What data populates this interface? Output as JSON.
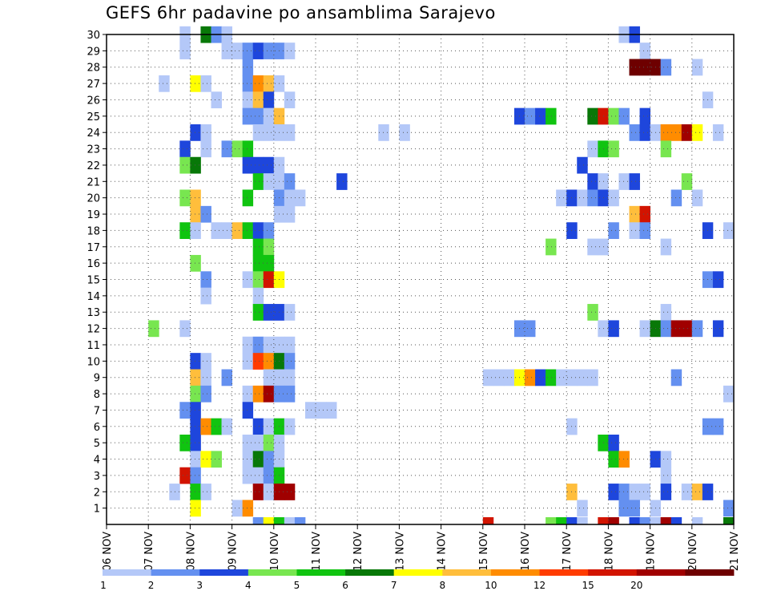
{
  "chart_data": {
    "type": "heatmap",
    "title": "GEFS 6hr padavine po ansamblima Sarajevo",
    "x_ticks": [
      "06 NOV",
      "07 NOV",
      "08 NOV",
      "09 NOV",
      "10 NOV",
      "11 NOV",
      "12 NOV",
      "13 NOV",
      "14 NOV",
      "15 NOV",
      "16 NOV",
      "17 NOV",
      "18 NOV",
      "19 NOV",
      "20 NOV",
      "21 NOV"
    ],
    "y_ticks": [
      1,
      2,
      3,
      4,
      5,
      6,
      7,
      8,
      9,
      10,
      11,
      12,
      13,
      14,
      15,
      16,
      17,
      18,
      19,
      20,
      21,
      22,
      23,
      24,
      25,
      26,
      27,
      28,
      29,
      30
    ],
    "xlim": [
      0,
      60
    ],
    "ylim": [
      0,
      30
    ],
    "time_step_hours": 6,
    "colorbar": {
      "labels": [
        "1",
        "2",
        "3",
        "4",
        "5",
        "6",
        "7",
        "8",
        "10",
        "12",
        "15",
        "20"
      ],
      "colors": [
        "#b4c8f8",
        "#6490f0",
        "#1e46dc",
        "#78e650",
        "#10c410",
        "#087808",
        "#ffff00",
        "#ffbe3c",
        "#ff8c00",
        "#ff3c00",
        "#d21400",
        "#a00000",
        "#6e0000"
      ]
    },
    "cells": [
      {
        "c": 10,
        "r": 30,
        "v": 6
      },
      {
        "c": 8,
        "r": 30,
        "v": 1
      },
      {
        "c": 11,
        "r": 30,
        "v": 2
      },
      {
        "c": 12,
        "r": 30,
        "v": 1
      },
      {
        "c": 50,
        "r": 30,
        "v": 1
      },
      {
        "c": 51,
        "r": 30,
        "v": 3
      },
      {
        "c": 8,
        "r": 29,
        "v": 1
      },
      {
        "c": 12,
        "r": 29,
        "v": 1
      },
      {
        "c": 13,
        "r": 29,
        "v": 1
      },
      {
        "c": 14,
        "r": 29,
        "v": 2
      },
      {
        "c": 15,
        "r": 29,
        "v": 3
      },
      {
        "c": 16,
        "r": 29,
        "v": 2
      },
      {
        "c": 17,
        "r": 29,
        "v": 2
      },
      {
        "c": 18,
        "r": 29,
        "v": 1
      },
      {
        "c": 52,
        "r": 29,
        "v": 1
      },
      {
        "c": 14,
        "r": 28,
        "v": 2
      },
      {
        "c": 51,
        "r": 28,
        "v": 13
      },
      {
        "c": 52,
        "r": 28,
        "v": 13
      },
      {
        "c": 53,
        "r": 28,
        "v": 13
      },
      {
        "c": 54,
        "r": 28,
        "v": 2
      },
      {
        "c": 57,
        "r": 28,
        "v": 1
      },
      {
        "c": 6,
        "r": 27,
        "v": 1
      },
      {
        "c": 9,
        "r": 27,
        "v": 7
      },
      {
        "c": 10,
        "r": 27,
        "v": 1
      },
      {
        "c": 14,
        "r": 27,
        "v": 2
      },
      {
        "c": 15,
        "r": 27,
        "v": 9
      },
      {
        "c": 16,
        "r": 27,
        "v": 8
      },
      {
        "c": 17,
        "r": 27,
        "v": 1
      },
      {
        "c": 11,
        "r": 26,
        "v": 1
      },
      {
        "c": 14,
        "r": 26,
        "v": 1
      },
      {
        "c": 15,
        "r": 26,
        "v": 8
      },
      {
        "c": 16,
        "r": 26,
        "v": 3
      },
      {
        "c": 18,
        "r": 26,
        "v": 1
      },
      {
        "c": 58,
        "r": 26,
        "v": 1
      },
      {
        "c": 14,
        "r": 25,
        "v": 2
      },
      {
        "c": 15,
        "r": 25,
        "v": 2
      },
      {
        "c": 16,
        "r": 25,
        "v": 1
      },
      {
        "c": 17,
        "r": 25,
        "v": 8
      },
      {
        "c": 40,
        "r": 25,
        "v": 3
      },
      {
        "c": 41,
        "r": 25,
        "v": 2
      },
      {
        "c": 42,
        "r": 25,
        "v": 3
      },
      {
        "c": 43,
        "r": 25,
        "v": 5
      },
      {
        "c": 47,
        "r": 25,
        "v": 6
      },
      {
        "c": 48,
        "r": 25,
        "v": 11
      },
      {
        "c": 49,
        "r": 25,
        "v": 4
      },
      {
        "c": 50,
        "r": 25,
        "v": 2
      },
      {
        "c": 52,
        "r": 25,
        "v": 3
      },
      {
        "c": 9,
        "r": 24,
        "v": 3
      },
      {
        "c": 10,
        "r": 24,
        "v": 1
      },
      {
        "c": 15,
        "r": 24,
        "v": 1
      },
      {
        "c": 16,
        "r": 24,
        "v": 1
      },
      {
        "c": 17,
        "r": 24,
        "v": 1
      },
      {
        "c": 18,
        "r": 24,
        "v": 1
      },
      {
        "c": 27,
        "r": 24,
        "v": 1
      },
      {
        "c": 29,
        "r": 24,
        "v": 1
      },
      {
        "c": 51,
        "r": 24,
        "v": 2
      },
      {
        "c": 52,
        "r": 24,
        "v": 3
      },
      {
        "c": 53,
        "r": 24,
        "v": 1
      },
      {
        "c": 54,
        "r": 24,
        "v": 9
      },
      {
        "c": 55,
        "r": 24,
        "v": 9
      },
      {
        "c": 56,
        "r": 24,
        "v": 12
      },
      {
        "c": 57,
        "r": 24,
        "v": 7
      },
      {
        "c": 59,
        "r": 24,
        "v": 1
      },
      {
        "c": 8,
        "r": 23,
        "v": 3
      },
      {
        "c": 10,
        "r": 23,
        "v": 1
      },
      {
        "c": 12,
        "r": 23,
        "v": 2
      },
      {
        "c": 13,
        "r": 23,
        "v": 4
      },
      {
        "c": 14,
        "r": 23,
        "v": 5
      },
      {
        "c": 47,
        "r": 23,
        "v": 1
      },
      {
        "c": 48,
        "r": 23,
        "v": 5
      },
      {
        "c": 49,
        "r": 23,
        "v": 4
      },
      {
        "c": 54,
        "r": 23,
        "v": 4
      },
      {
        "c": 8,
        "r": 22,
        "v": 4
      },
      {
        "c": 9,
        "r": 22,
        "v": 6
      },
      {
        "c": 14,
        "r": 22,
        "v": 3
      },
      {
        "c": 15,
        "r": 22,
        "v": 3
      },
      {
        "c": 16,
        "r": 22,
        "v": 3
      },
      {
        "c": 17,
        "r": 22,
        "v": 1
      },
      {
        "c": 46,
        "r": 22,
        "v": 3
      },
      {
        "c": 15,
        "r": 21,
        "v": 5
      },
      {
        "c": 16,
        "r": 21,
        "v": 1
      },
      {
        "c": 17,
        "r": 21,
        "v": 1
      },
      {
        "c": 18,
        "r": 21,
        "v": 2
      },
      {
        "c": 23,
        "r": 21,
        "v": 3
      },
      {
        "c": 47,
        "r": 21,
        "v": 3
      },
      {
        "c": 48,
        "r": 21,
        "v": 1
      },
      {
        "c": 50,
        "r": 21,
        "v": 1
      },
      {
        "c": 51,
        "r": 21,
        "v": 3
      },
      {
        "c": 56,
        "r": 21,
        "v": 4
      },
      {
        "c": 8,
        "r": 20,
        "v": 4
      },
      {
        "c": 9,
        "r": 20,
        "v": 8
      },
      {
        "c": 14,
        "r": 20,
        "v": 5
      },
      {
        "c": 17,
        "r": 20,
        "v": 2
      },
      {
        "c": 18,
        "r": 20,
        "v": 1
      },
      {
        "c": 19,
        "r": 20,
        "v": 1
      },
      {
        "c": 44,
        "r": 20,
        "v": 1
      },
      {
        "c": 45,
        "r": 20,
        "v": 3
      },
      {
        "c": 46,
        "r": 20,
        "v": 1
      },
      {
        "c": 47,
        "r": 20,
        "v": 2
      },
      {
        "c": 48,
        "r": 20,
        "v": 3
      },
      {
        "c": 49,
        "r": 20,
        "v": 1
      },
      {
        "c": 55,
        "r": 20,
        "v": 2
      },
      {
        "c": 57,
        "r": 20,
        "v": 1
      },
      {
        "c": 9,
        "r": 19,
        "v": 8
      },
      {
        "c": 10,
        "r": 19,
        "v": 2
      },
      {
        "c": 17,
        "r": 19,
        "v": 1
      },
      {
        "c": 18,
        "r": 19,
        "v": 1
      },
      {
        "c": 51,
        "r": 19,
        "v": 8
      },
      {
        "c": 52,
        "r": 19,
        "v": 11
      },
      {
        "c": 8,
        "r": 18,
        "v": 5
      },
      {
        "c": 9,
        "r": 18,
        "v": 1
      },
      {
        "c": 11,
        "r": 18,
        "v": 1
      },
      {
        "c": 12,
        "r": 18,
        "v": 1
      },
      {
        "c": 13,
        "r": 18,
        "v": 8
      },
      {
        "c": 14,
        "r": 18,
        "v": 5
      },
      {
        "c": 15,
        "r": 18,
        "v": 3
      },
      {
        "c": 16,
        "r": 18,
        "v": 2
      },
      {
        "c": 45,
        "r": 18,
        "v": 3
      },
      {
        "c": 49,
        "r": 18,
        "v": 2
      },
      {
        "c": 51,
        "r": 18,
        "v": 1
      },
      {
        "c": 52,
        "r": 18,
        "v": 2
      },
      {
        "c": 58,
        "r": 18,
        "v": 3
      },
      {
        "c": 60,
        "r": 18,
        "v": 1
      },
      {
        "c": 15,
        "r": 17,
        "v": 5
      },
      {
        "c": 16,
        "r": 17,
        "v": 4
      },
      {
        "c": 43,
        "r": 17,
        "v": 4
      },
      {
        "c": 47,
        "r": 17,
        "v": 1
      },
      {
        "c": 48,
        "r": 17,
        "v": 1
      },
      {
        "c": 54,
        "r": 17,
        "v": 1
      },
      {
        "c": 9,
        "r": 16,
        "v": 4
      },
      {
        "c": 15,
        "r": 16,
        "v": 5
      },
      {
        "c": 16,
        "r": 16,
        "v": 5
      },
      {
        "c": 10,
        "r": 15,
        "v": 2
      },
      {
        "c": 14,
        "r": 15,
        "v": 1
      },
      {
        "c": 15,
        "r": 15,
        "v": 4
      },
      {
        "c": 16,
        "r": 15,
        "v": 11
      },
      {
        "c": 17,
        "r": 15,
        "v": 7
      },
      {
        "c": 58,
        "r": 15,
        "v": 2
      },
      {
        "c": 59,
        "r": 15,
        "v": 3
      },
      {
        "c": 10,
        "r": 14,
        "v": 1
      },
      {
        "c": 15,
        "r": 14,
        "v": 1
      },
      {
        "c": 15,
        "r": 13,
        "v": 5
      },
      {
        "c": 16,
        "r": 13,
        "v": 3
      },
      {
        "c": 17,
        "r": 13,
        "v": 3
      },
      {
        "c": 18,
        "r": 13,
        "v": 1
      },
      {
        "c": 47,
        "r": 13,
        "v": 4
      },
      {
        "c": 54,
        "r": 13,
        "v": 1
      },
      {
        "c": 5,
        "r": 12,
        "v": 4
      },
      {
        "c": 8,
        "r": 12,
        "v": 1
      },
      {
        "c": 40,
        "r": 12,
        "v": 2
      },
      {
        "c": 41,
        "r": 12,
        "v": 2
      },
      {
        "c": 48,
        "r": 12,
        "v": 1
      },
      {
        "c": 49,
        "r": 12,
        "v": 3
      },
      {
        "c": 52,
        "r": 12,
        "v": 1
      },
      {
        "c": 53,
        "r": 12,
        "v": 6
      },
      {
        "c": 54,
        "r": 12,
        "v": 2
      },
      {
        "c": 55,
        "r": 12,
        "v": 12
      },
      {
        "c": 56,
        "r": 12,
        "v": 12
      },
      {
        "c": 57,
        "r": 12,
        "v": 2
      },
      {
        "c": 59,
        "r": 12,
        "v": 3
      },
      {
        "c": 14,
        "r": 11,
        "v": 1
      },
      {
        "c": 15,
        "r": 11,
        "v": 2
      },
      {
        "c": 16,
        "r": 11,
        "v": 1
      },
      {
        "c": 17,
        "r": 11,
        "v": 1
      },
      {
        "c": 18,
        "r": 11,
        "v": 1
      },
      {
        "c": 9,
        "r": 10,
        "v": 3
      },
      {
        "c": 10,
        "r": 10,
        "v": 1
      },
      {
        "c": 14,
        "r": 10,
        "v": 1
      },
      {
        "c": 15,
        "r": 10,
        "v": 10
      },
      {
        "c": 16,
        "r": 10,
        "v": 9
      },
      {
        "c": 17,
        "r": 10,
        "v": 6
      },
      {
        "c": 18,
        "r": 10,
        "v": 2
      },
      {
        "c": 9,
        "r": 9,
        "v": 8
      },
      {
        "c": 10,
        "r": 9,
        "v": 1
      },
      {
        "c": 12,
        "r": 9,
        "v": 2
      },
      {
        "c": 16,
        "r": 9,
        "v": 1
      },
      {
        "c": 17,
        "r": 9,
        "v": 1
      },
      {
        "c": 18,
        "r": 9,
        "v": 1
      },
      {
        "c": 37,
        "r": 9,
        "v": 1
      },
      {
        "c": 38,
        "r": 9,
        "v": 1
      },
      {
        "c": 39,
        "r": 9,
        "v": 1
      },
      {
        "c": 40,
        "r": 9,
        "v": 7
      },
      {
        "c": 41,
        "r": 9,
        "v": 9
      },
      {
        "c": 42,
        "r": 9,
        "v": 3
      },
      {
        "c": 43,
        "r": 9,
        "v": 5
      },
      {
        "c": 44,
        "r": 9,
        "v": 1
      },
      {
        "c": 45,
        "r": 9,
        "v": 1
      },
      {
        "c": 46,
        "r": 9,
        "v": 1
      },
      {
        "c": 47,
        "r": 9,
        "v": 1
      },
      {
        "c": 55,
        "r": 9,
        "v": 2
      },
      {
        "c": 9,
        "r": 8,
        "v": 4
      },
      {
        "c": 10,
        "r": 8,
        "v": 2
      },
      {
        "c": 14,
        "r": 8,
        "v": 1
      },
      {
        "c": 15,
        "r": 8,
        "v": 9
      },
      {
        "c": 16,
        "r": 8,
        "v": 12
      },
      {
        "c": 17,
        "r": 8,
        "v": 2
      },
      {
        "c": 18,
        "r": 8,
        "v": 2
      },
      {
        "c": 60,
        "r": 8,
        "v": 1
      },
      {
        "c": 8,
        "r": 7,
        "v": 2
      },
      {
        "c": 9,
        "r": 7,
        "v": 3
      },
      {
        "c": 14,
        "r": 7,
        "v": 3
      },
      {
        "c": 20,
        "r": 7,
        "v": 1
      },
      {
        "c": 21,
        "r": 7,
        "v": 1
      },
      {
        "c": 22,
        "r": 7,
        "v": 1
      },
      {
        "c": 9,
        "r": 6,
        "v": 3
      },
      {
        "c": 10,
        "r": 6,
        "v": 9
      },
      {
        "c": 11,
        "r": 6,
        "v": 5
      },
      {
        "c": 12,
        "r": 6,
        "v": 1
      },
      {
        "c": 15,
        "r": 6,
        "v": 3
      },
      {
        "c": 16,
        "r": 6,
        "v": 1
      },
      {
        "c": 17,
        "r": 6,
        "v": 5
      },
      {
        "c": 18,
        "r": 6,
        "v": 1
      },
      {
        "c": 45,
        "r": 6,
        "v": 1
      },
      {
        "c": 58,
        "r": 6,
        "v": 2
      },
      {
        "c": 59,
        "r": 6,
        "v": 2
      },
      {
        "c": 8,
        "r": 5,
        "v": 5
      },
      {
        "c": 9,
        "r": 5,
        "v": 3
      },
      {
        "c": 14,
        "r": 5,
        "v": 1
      },
      {
        "c": 15,
        "r": 5,
        "v": 1
      },
      {
        "c": 16,
        "r": 5,
        "v": 4
      },
      {
        "c": 17,
        "r": 5,
        "v": 1
      },
      {
        "c": 48,
        "r": 5,
        "v": 5
      },
      {
        "c": 49,
        "r": 5,
        "v": 3
      },
      {
        "c": 9,
        "r": 4,
        "v": 1
      },
      {
        "c": 10,
        "r": 4,
        "v": 7
      },
      {
        "c": 11,
        "r": 4,
        "v": 4
      },
      {
        "c": 14,
        "r": 4,
        "v": 1
      },
      {
        "c": 15,
        "r": 4,
        "v": 6
      },
      {
        "c": 16,
        "r": 4,
        "v": 2
      },
      {
        "c": 17,
        "r": 4,
        "v": 1
      },
      {
        "c": 49,
        "r": 4,
        "v": 5
      },
      {
        "c": 50,
        "r": 4,
        "v": 9
      },
      {
        "c": 53,
        "r": 4,
        "v": 3
      },
      {
        "c": 54,
        "r": 4,
        "v": 1
      },
      {
        "c": 8,
        "r": 3,
        "v": 11
      },
      {
        "c": 9,
        "r": 3,
        "v": 2
      },
      {
        "c": 14,
        "r": 3,
        "v": 1
      },
      {
        "c": 15,
        "r": 3,
        "v": 1
      },
      {
        "c": 16,
        "r": 3,
        "v": 2
      },
      {
        "c": 17,
        "r": 3,
        "v": 5
      },
      {
        "c": 54,
        "r": 3,
        "v": 1
      },
      {
        "c": 7,
        "r": 2,
        "v": 1
      },
      {
        "c": 9,
        "r": 2,
        "v": 5
      },
      {
        "c": 10,
        "r": 2,
        "v": 1
      },
      {
        "c": 15,
        "r": 2,
        "v": 12
      },
      {
        "c": 16,
        "r": 2,
        "v": 1
      },
      {
        "c": 17,
        "r": 2,
        "v": 12
      },
      {
        "c": 18,
        "r": 2,
        "v": 12
      },
      {
        "c": 45,
        "r": 2,
        "v": 8
      },
      {
        "c": 49,
        "r": 2,
        "v": 3
      },
      {
        "c": 50,
        "r": 2,
        "v": 2
      },
      {
        "c": 51,
        "r": 2,
        "v": 1
      },
      {
        "c": 52,
        "r": 2,
        "v": 1
      },
      {
        "c": 54,
        "r": 2,
        "v": 3
      },
      {
        "c": 56,
        "r": 2,
        "v": 1
      },
      {
        "c": 57,
        "r": 2,
        "v": 8
      },
      {
        "c": 58,
        "r": 2,
        "v": 3
      },
      {
        "c": 9,
        "r": 1,
        "v": 7
      },
      {
        "c": 13,
        "r": 1,
        "v": 1
      },
      {
        "c": 14,
        "r": 1,
        "v": 9
      },
      {
        "c": 46,
        "r": 1,
        "v": 1
      },
      {
        "c": 50,
        "r": 1,
        "v": 2
      },
      {
        "c": 51,
        "r": 1,
        "v": 2
      },
      {
        "c": 53,
        "r": 1,
        "v": 1
      },
      {
        "c": 60,
        "r": 1,
        "v": 2
      },
      {
        "c": 15,
        "r": 0,
        "v": 2
      },
      {
        "c": 16,
        "r": 0,
        "v": 7
      },
      {
        "c": 17,
        "r": 0,
        "v": 5
      },
      {
        "c": 18,
        "r": 0,
        "v": 1
      },
      {
        "c": 19,
        "r": 0,
        "v": 2
      },
      {
        "c": 37,
        "r": 0,
        "v": 11
      },
      {
        "c": 43,
        "r": 0,
        "v": 4
      },
      {
        "c": 44,
        "r": 0,
        "v": 5
      },
      {
        "c": 45,
        "r": 0,
        "v": 3
      },
      {
        "c": 46,
        "r": 0,
        "v": 1
      },
      {
        "c": 48,
        "r": 0,
        "v": 11
      },
      {
        "c": 49,
        "r": 0,
        "v": 12
      },
      {
        "c": 51,
        "r": 0,
        "v": 3
      },
      {
        "c": 52,
        "r": 0,
        "v": 2
      },
      {
        "c": 53,
        "r": 0,
        "v": 1
      },
      {
        "c": 54,
        "r": 0,
        "v": 12
      },
      {
        "c": 55,
        "r": 0,
        "v": 3
      },
      {
        "c": 57,
        "r": 0,
        "v": 1
      },
      {
        "c": 60,
        "r": 0,
        "v": 6
      }
    ]
  }
}
